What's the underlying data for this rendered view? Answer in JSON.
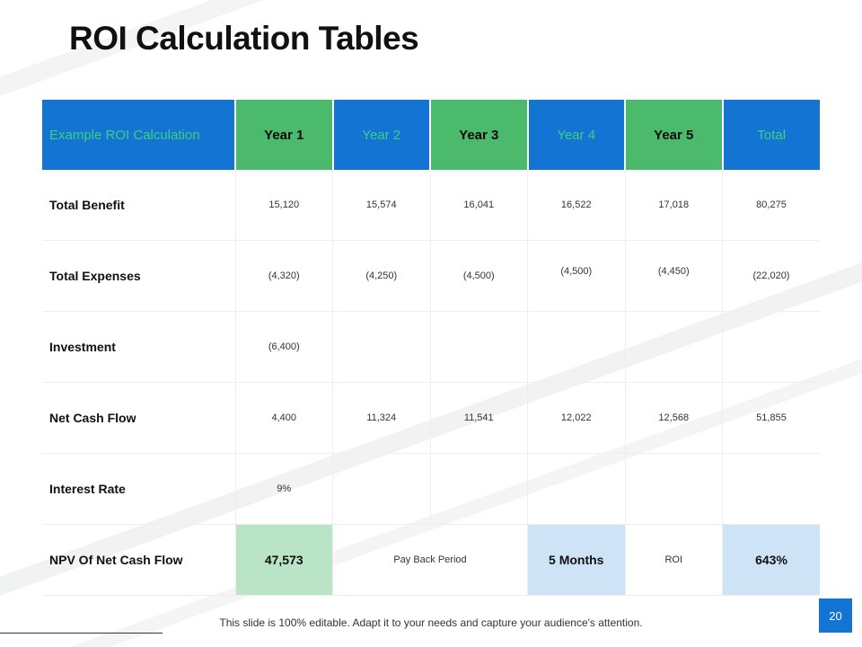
{
  "slide": {
    "title": "ROI Calculation Tables",
    "footer": "This slide is 100% editable. Adapt it to your needs and capture your audience's attention.",
    "page_number": "20"
  },
  "colors": {
    "header_blue": "#1474d4",
    "header_green": "#4cba6c",
    "header_blue_text": "#3fcf7a",
    "highlight_green": "#b9e4c6",
    "highlight_blue": "#cfe3f7"
  },
  "table": {
    "headers": [
      "Example ROI Calculation",
      "Year 1",
      "Year 2",
      "Year 3",
      "Year 4",
      "Year 5",
      "Total"
    ],
    "rows": [
      {
        "label": "Total Benefit",
        "values": [
          "15,120",
          "15,574",
          "16,041",
          "16,522",
          "17,018",
          "80,275"
        ]
      },
      {
        "label": "Total Expenses",
        "values": [
          "(4,320)",
          "(4,250)",
          "(4,500)",
          "(4,500)",
          "(4,450)",
          "(22,020)"
        ]
      },
      {
        "label": "Investment",
        "values": [
          "(6,400)",
          "",
          "",
          "",
          "",
          ""
        ]
      },
      {
        "label": "Net Cash Flow",
        "values": [
          "4,400",
          "11,324",
          "11,541",
          "12,022",
          "12,568",
          "51,855"
        ]
      },
      {
        "label": "Interest Rate",
        "values": [
          "9%",
          "",
          "",
          "",
          "",
          ""
        ]
      }
    ],
    "summary": {
      "npv_label": "NPV Of Net Cash Flow",
      "npv_value": "47,573",
      "payback_label": "Pay Back Period",
      "payback_value": "5 Months",
      "roi_label": "ROI",
      "roi_value": "643%"
    }
  }
}
